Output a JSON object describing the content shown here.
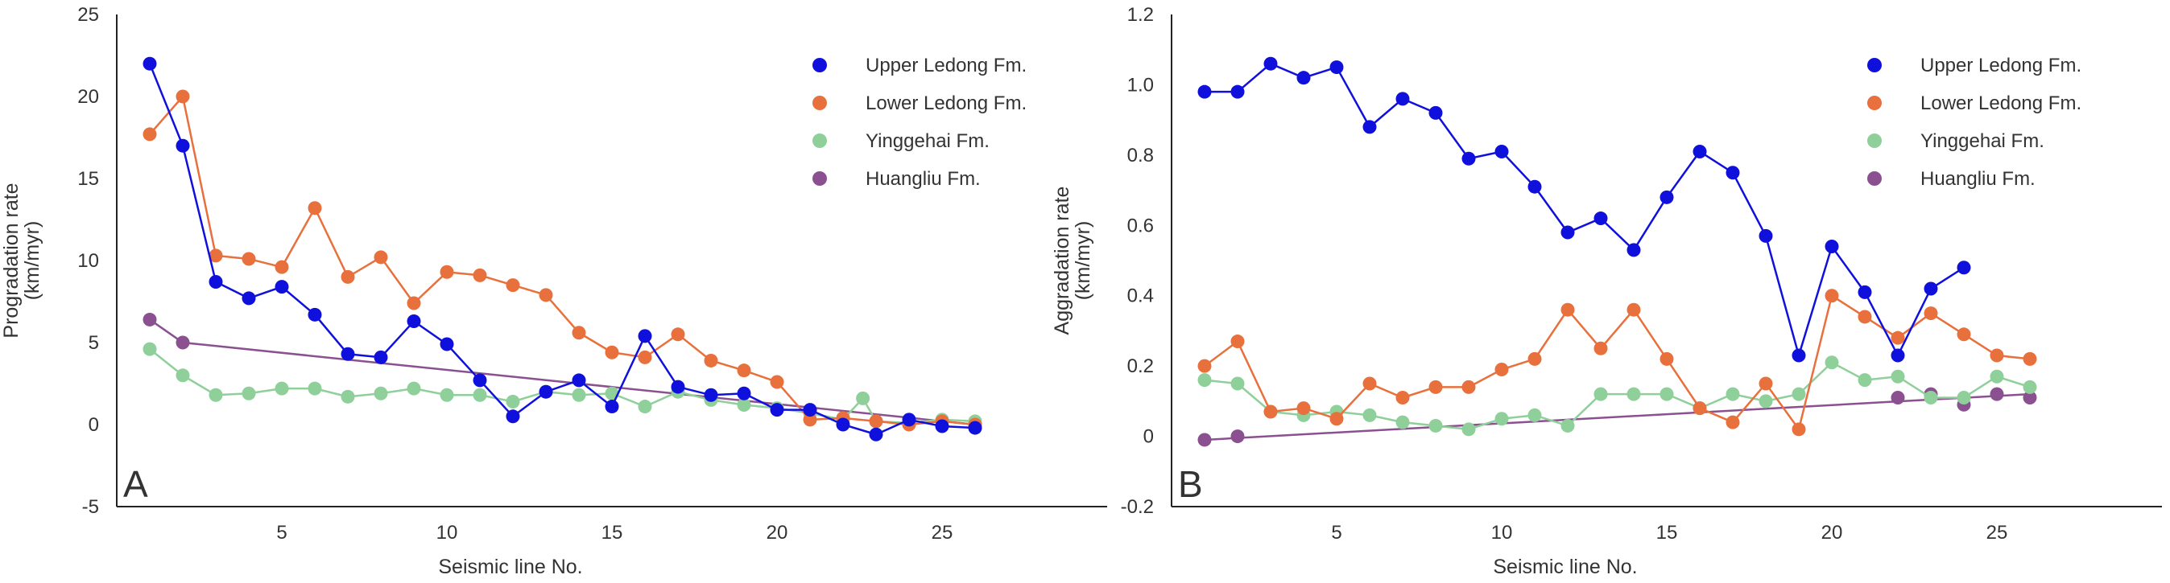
{
  "chart_data": [
    {
      "type": "line",
      "panel_label": "A",
      "xlabel": "Seismic line No.",
      "ylabel_lines": [
        "Progradation rate",
        "(km/myr)"
      ],
      "xlim": [
        0,
        30
      ],
      "ylim": [
        -5,
        25
      ],
      "xticks": [
        5,
        10,
        15,
        20,
        25
      ],
      "yticks": [
        -5,
        0,
        5,
        10,
        15,
        20,
        25
      ],
      "legend_position": "top-right",
      "series": [
        {
          "name": "Upper Ledong Fm.",
          "color": "#1010dd",
          "x": [
            1,
            2,
            3,
            4,
            5,
            6,
            7,
            8,
            9,
            10,
            11,
            12,
            13,
            14,
            15,
            16,
            17,
            18,
            19,
            20,
            21,
            22,
            23,
            24,
            25,
            26
          ],
          "y": [
            22,
            17,
            8.7,
            7.7,
            8.4,
            6.7,
            4.3,
            4.1,
            6.3,
            4.9,
            2.7,
            0.5,
            2.0,
            2.7,
            1.1,
            5.4,
            2.3,
            1.8,
            1.9,
            0.9,
            0.9,
            0.0,
            -0.6,
            0.3,
            -0.1,
            -0.2
          ]
        },
        {
          "name": "Lower Ledong Fm.",
          "color": "#e8703c",
          "x": [
            1,
            2,
            3,
            4,
            5,
            6,
            7,
            8,
            9,
            10,
            11,
            12,
            13,
            14,
            15,
            16,
            17,
            18,
            19,
            20,
            21,
            22,
            23,
            24,
            25,
            26
          ],
          "y": [
            17.7,
            20,
            10.3,
            10.1,
            9.6,
            13.2,
            9.0,
            10.2,
            7.4,
            9.3,
            9.1,
            8.5,
            7.9,
            5.6,
            4.4,
            4.1,
            5.5,
            3.9,
            3.3,
            2.6,
            0.3,
            0.4,
            0.2,
            0.0,
            0.2,
            0.0
          ]
        },
        {
          "name": "Yinggehai Fm.",
          "color": "#8fcf9a",
          "x": [
            1,
            2,
            3,
            4,
            5,
            6,
            7,
            8,
            9,
            10,
            11,
            12,
            13,
            14,
            15,
            16,
            17,
            18,
            19,
            20,
            21,
            22,
            22.6,
            23,
            24,
            25,
            26
          ],
          "y": [
            4.6,
            3.0,
            1.8,
            1.9,
            2.2,
            2.2,
            1.7,
            1.9,
            2.2,
            1.8,
            1.8,
            1.4,
            2.0,
            1.8,
            1.9,
            1.1,
            2.0,
            1.5,
            1.2,
            1.0,
            0.7,
            0.3,
            1.6,
            0.2,
            0.1,
            0.3,
            0.2
          ]
        },
        {
          "name": "Huangliu Fm.",
          "color": "#8a5090",
          "x": [
            1,
            2,
            26
          ],
          "y": [
            6.4,
            5.0,
            0.0
          ]
        }
      ]
    },
    {
      "type": "line",
      "panel_label": "B",
      "xlabel": "Seismic line No.",
      "ylabel_lines": [
        "Aggradation rate",
        "(km/myr)"
      ],
      "xlim": [
        0,
        30
      ],
      "ylim": [
        -0.2,
        1.2
      ],
      "xticks": [
        5,
        10,
        15,
        20,
        25
      ],
      "yticks": [
        -0.2,
        0,
        0.2,
        0.4,
        0.6,
        0.8,
        1.0,
        1.2
      ],
      "ytick_labels": [
        "-0.2",
        "0",
        "0.2",
        "0.4",
        "0.6",
        "0.8",
        "1.0",
        "1.2"
      ],
      "legend_position": "top-right",
      "series": [
        {
          "name": "Upper Ledong Fm.",
          "color": "#1010dd",
          "x": [
            1,
            2,
            3,
            4,
            5,
            6,
            7,
            8,
            9,
            10,
            11,
            12,
            13,
            14,
            15,
            16,
            17,
            18,
            19,
            20,
            21,
            22,
            23,
            24
          ],
          "y": [
            0.98,
            0.98,
            1.06,
            1.02,
            1.05,
            0.88,
            0.96,
            0.92,
            0.79,
            0.81,
            0.71,
            0.58,
            0.62,
            0.53,
            0.68,
            0.81,
            0.75,
            0.57,
            0.23,
            0.54,
            0.41,
            0.23,
            0.42,
            0.48
          ]
        },
        {
          "name": "Lower Ledong Fm.",
          "color": "#e8703c",
          "x": [
            1,
            2,
            3,
            4,
            5,
            6,
            7,
            8,
            9,
            10,
            11,
            12,
            13,
            14,
            15,
            16,
            17,
            18,
            19,
            20,
            21,
            22,
            23,
            24,
            25,
            26
          ],
          "y": [
            0.2,
            0.27,
            0.07,
            0.08,
            0.05,
            0.15,
            0.11,
            0.14,
            0.14,
            0.19,
            0.22,
            0.36,
            0.25,
            0.36,
            0.22,
            0.08,
            0.04,
            0.15,
            0.02,
            0.4,
            0.34,
            0.28,
            0.35,
            0.29,
            0.23,
            0.22
          ]
        },
        {
          "name": "Yinggehai Fm.",
          "color": "#8fcf9a",
          "x": [
            1,
            2,
            3,
            4,
            5,
            6,
            7,
            8,
            9,
            10,
            11,
            12,
            13,
            14,
            15,
            16,
            17,
            18,
            19,
            20,
            21,
            22,
            23,
            24,
            25,
            26
          ],
          "y": [
            0.16,
            0.15,
            0.07,
            0.06,
            0.07,
            0.06,
            0.04,
            0.03,
            0.02,
            0.05,
            0.06,
            0.03,
            0.12,
            0.12,
            0.12,
            0.08,
            0.12,
            0.1,
            0.12,
            0.21,
            0.16,
            0.17,
            0.11,
            0.11,
            0.17,
            0.14
          ]
        },
        {
          "name": "Huangliu Fm.",
          "color": "#8a5090",
          "x": [
            1,
            2,
            22,
            23,
            24,
            25,
            26
          ],
          "y": [
            -0.01,
            0.0,
            0.11,
            0.12,
            0.09,
            0.12,
            0.11
          ],
          "trend_line": {
            "x": [
              1,
              26
            ],
            "y": [
              -0.01,
              0.12
            ]
          }
        }
      ]
    }
  ]
}
